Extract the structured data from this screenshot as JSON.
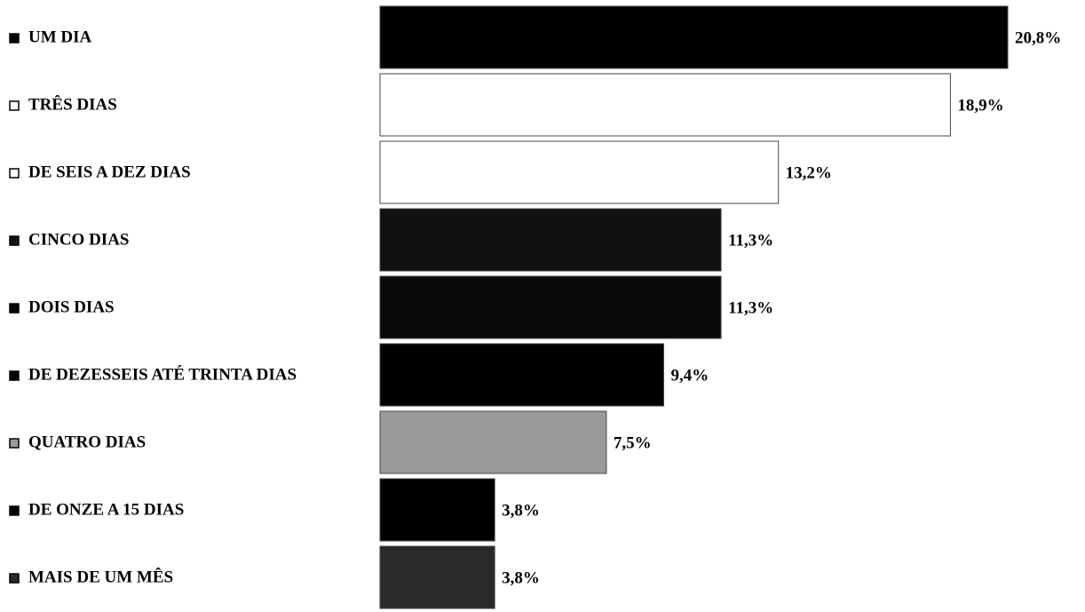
{
  "chart_data": {
    "type": "barh",
    "categories": [
      "UM DIA",
      "TRÊS DIAS",
      "DE SEIS A DEZ DIAS",
      "CINCO DIAS",
      "DOIS DIAS",
      "DE DEZESSEIS ATÉ TRINTA DIAS",
      "QUATRO DIAS",
      "DE ONZE A 15 DIAS",
      "MAIS DE UM MÊS"
    ],
    "values": [
      20.8,
      18.9,
      13.2,
      11.3,
      11.3,
      9.4,
      7.5,
      3.8,
      3.8
    ],
    "value_labels": [
      "20,8%",
      "18,9%",
      "13,2%",
      "11,3%",
      "11,3%",
      "9,4%",
      "7,5%",
      "3,8%",
      "3,8%"
    ],
    "colors": [
      "#000000",
      "#ffffff",
      "#ffffff",
      "#111111",
      "#0a0a0a",
      "#000000",
      "#9a9a9a",
      "#000000",
      "#2a2a2a"
    ]
  }
}
